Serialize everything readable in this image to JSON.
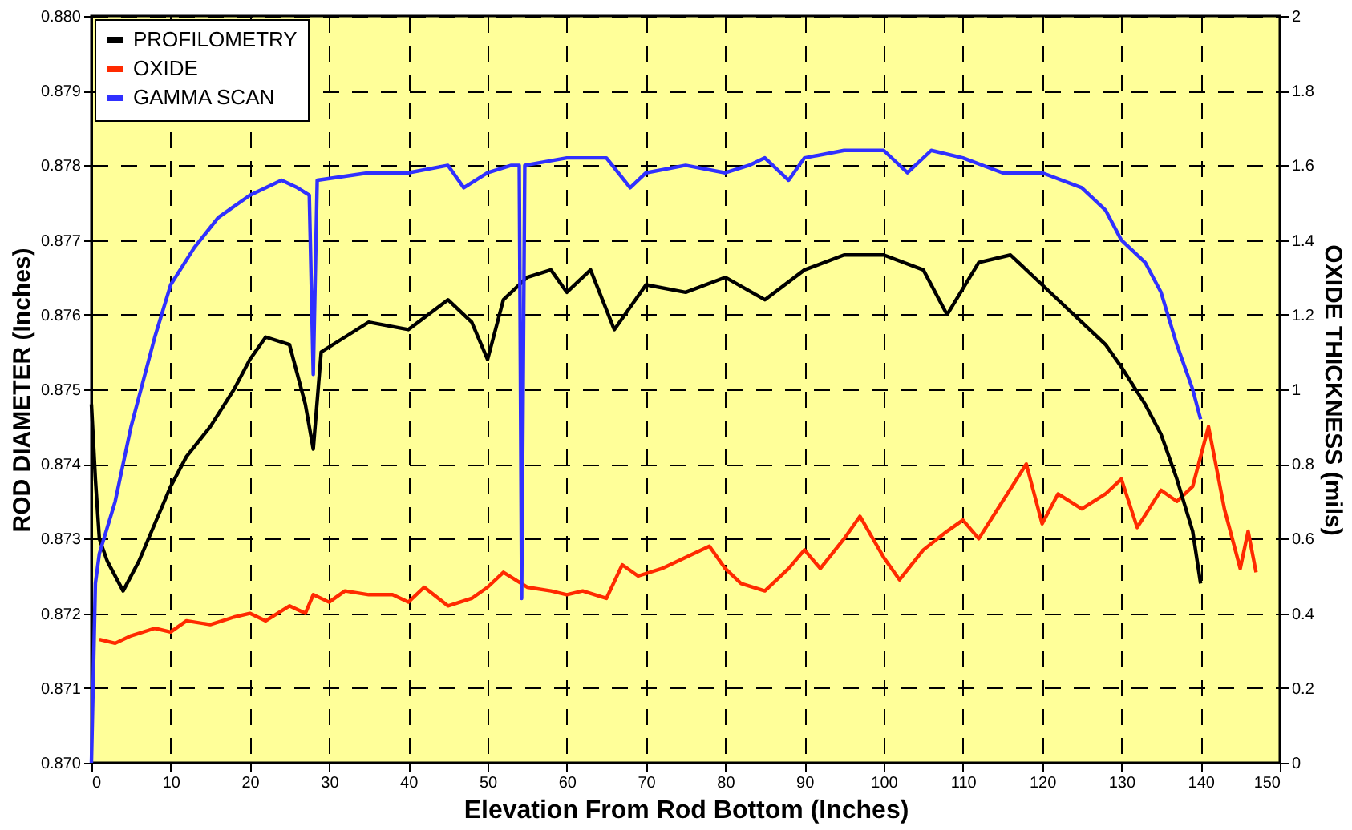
{
  "chart_data": {
    "type": "line",
    "xlabel": "Elevation From Rod Bottom (Inches)",
    "ylabel": "ROD DIAMETER (Inches)",
    "y2label": "OXIDE THICKNESS (mils)",
    "xlim": [
      0,
      150
    ],
    "xticks": [
      0,
      10,
      20,
      30,
      40,
      50,
      60,
      70,
      80,
      90,
      100,
      110,
      120,
      130,
      140,
      150
    ],
    "ylim": [
      0.87,
      0.88
    ],
    "yticks": [
      {
        "value": 0.87,
        "label": "0.870"
      },
      {
        "value": 0.871,
        "label": "0.871"
      },
      {
        "value": 0.872,
        "label": "0.872"
      },
      {
        "value": 0.873,
        "label": "0.873"
      },
      {
        "value": 0.874,
        "label": "0.874"
      },
      {
        "value": 0.875,
        "label": "0.875"
      },
      {
        "value": 0.876,
        "label": "0.876"
      },
      {
        "value": 0.877,
        "label": "0.877"
      },
      {
        "value": 0.878,
        "label": "0.878"
      },
      {
        "value": 0.879,
        "label": "0.879"
      },
      {
        "value": 0.88,
        "label": "0.880"
      }
    ],
    "y2lim": [
      0,
      2
    ],
    "y2ticks": [
      0,
      0.2,
      0.4,
      0.6,
      0.8,
      1,
      1.2,
      1.4,
      1.6,
      1.8,
      2
    ],
    "grid": true,
    "legend": "top left",
    "line_style": "solid",
    "marker": "none",
    "series": [
      {
        "name": "PROFILOMETRY",
        "color": "#000000",
        "x": [
          0,
          0.5,
          1,
          2,
          4,
          6,
          8,
          10,
          12,
          15,
          18,
          20,
          22,
          25,
          27,
          28,
          29,
          32,
          35,
          40,
          45,
          48,
          50,
          52,
          55,
          58,
          60,
          63,
          66,
          68,
          70,
          75,
          80,
          85,
          90,
          95,
          100,
          105,
          108,
          112,
          116,
          120,
          125,
          128,
          130,
          133,
          135,
          137,
          139,
          140
        ],
        "values": [
          0.8748,
          0.8738,
          0.873,
          0.8727,
          0.8723,
          0.8727,
          0.8732,
          0.8737,
          0.8741,
          0.8745,
          0.875,
          0.8754,
          0.8757,
          0.8756,
          0.8748,
          0.8742,
          0.8755,
          0.8757,
          0.8759,
          0.8758,
          0.8762,
          0.8759,
          0.8754,
          0.8762,
          0.8765,
          0.8766,
          0.8763,
          0.8766,
          0.8758,
          0.8761,
          0.8764,
          0.8763,
          0.8765,
          0.8762,
          0.8766,
          0.8768,
          0.8768,
          0.8766,
          0.876,
          0.8767,
          0.8768,
          0.8764,
          0.8759,
          0.8756,
          0.8753,
          0.8748,
          0.8744,
          0.8738,
          0.8731,
          0.8724
        ]
      },
      {
        "name": "OXIDE",
        "color": "#ff2a00",
        "axis": "y2",
        "x": [
          1,
          3,
          5,
          8,
          10,
          12,
          15,
          18,
          20,
          22,
          25,
          27,
          28,
          30,
          32,
          35,
          38,
          40,
          42,
          45,
          48,
          50,
          52,
          55,
          58,
          60,
          62,
          65,
          67,
          69,
          72,
          75,
          78,
          80,
          82,
          85,
          88,
          90,
          92,
          95,
          97,
          100,
          102,
          105,
          108,
          110,
          112,
          115,
          118,
          120,
          122,
          125,
          128,
          130,
          132,
          135,
          137,
          139,
          141,
          143,
          145,
          146,
          147
        ],
        "values": [
          0.33,
          0.32,
          0.34,
          0.36,
          0.35,
          0.38,
          0.37,
          0.39,
          0.4,
          0.38,
          0.42,
          0.4,
          0.45,
          0.43,
          0.46,
          0.45,
          0.45,
          0.43,
          0.47,
          0.42,
          0.44,
          0.47,
          0.51,
          0.47,
          0.46,
          0.45,
          0.46,
          0.44,
          0.53,
          0.5,
          0.52,
          0.55,
          0.58,
          0.52,
          0.48,
          0.46,
          0.52,
          0.57,
          0.52,
          0.6,
          0.66,
          0.55,
          0.49,
          0.57,
          0.62,
          0.65,
          0.6,
          0.7,
          0.8,
          0.64,
          0.72,
          0.68,
          0.72,
          0.76,
          0.63,
          0.73,
          0.7,
          0.74,
          0.9,
          0.68,
          0.52,
          0.62,
          0.51
        ]
      },
      {
        "name": "GAMMA SCAN",
        "color": "#3030ff",
        "x": [
          0,
          0.5,
          1,
          3,
          5,
          8,
          10,
          13,
          16,
          20,
          24,
          26,
          27.5,
          28,
          28.5,
          35,
          40,
          45,
          47,
          50,
          53,
          54,
          54.3,
          54.7,
          60,
          65,
          68,
          70,
          75,
          80,
          83,
          85,
          88,
          90,
          95,
          100,
          103,
          106,
          110,
          115,
          120,
          125,
          128,
          130,
          133,
          135,
          137,
          139,
          140
        ],
        "values": [
          0.87,
          0.8724,
          0.8728,
          0.8735,
          0.8745,
          0.8757,
          0.8764,
          0.8769,
          0.8773,
          0.8776,
          0.8778,
          0.8777,
          0.8776,
          0.8752,
          0.8778,
          0.8779,
          0.8779,
          0.878,
          0.8777,
          0.8779,
          0.878,
          0.878,
          0.8722,
          0.878,
          0.8781,
          0.8781,
          0.8777,
          0.8779,
          0.878,
          0.8779,
          0.878,
          0.8781,
          0.8778,
          0.8781,
          0.8782,
          0.8782,
          0.8779,
          0.8782,
          0.8781,
          0.8779,
          0.8779,
          0.8777,
          0.8774,
          0.877,
          0.8767,
          0.8763,
          0.8756,
          0.875,
          0.8746
        ]
      }
    ]
  }
}
